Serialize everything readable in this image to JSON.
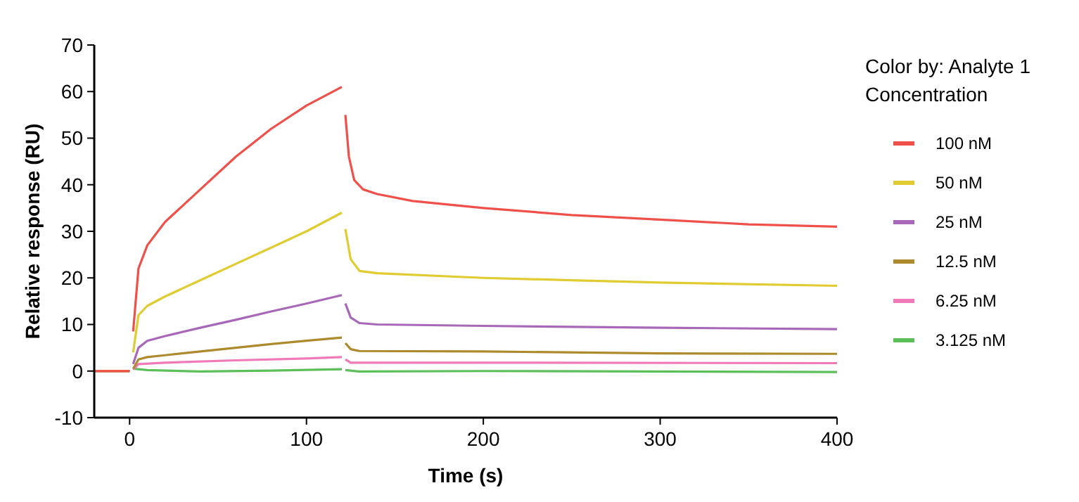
{
  "chart_data": {
    "type": "line",
    "xlabel": "Time (s)",
    "ylabel": "Relative response (RU)",
    "legend_title": "Color by: Analyte 1 Concentration",
    "legend": "right",
    "grid": false,
    "marker": "none",
    "line_style": "solid",
    "xlim": [
      -20,
      400
    ],
    "xticks": [
      0,
      100,
      200,
      300,
      400
    ],
    "ylim": [
      -10,
      70
    ],
    "yticks": [
      -10,
      0,
      10,
      20,
      30,
      40,
      50,
      60,
      70
    ],
    "series": [
      {
        "name": "100 nM",
        "color": "#f0504a",
        "x": [
          -20,
          0,
          null,
          2,
          5,
          10,
          20,
          40,
          60,
          80,
          100,
          120,
          null,
          122,
          124,
          127,
          132,
          140,
          160,
          200,
          250,
          300,
          350,
          400
        ],
        "values": [
          0,
          0,
          null,
          8.5,
          22,
          27,
          32,
          39,
          46,
          52,
          57,
          61,
          null,
          55,
          46,
          41,
          39,
          38,
          36.5,
          35,
          33.5,
          32.5,
          31.5,
          31
        ]
      },
      {
        "name": "50 nM",
        "color": "#e0cc30",
        "x": [
          -20,
          0,
          null,
          2,
          5,
          10,
          20,
          40,
          60,
          80,
          100,
          120,
          null,
          122,
          125,
          130,
          140,
          200,
          250,
          300,
          400
        ],
        "values": [
          0,
          0,
          null,
          4,
          12,
          14,
          16,
          19.5,
          23,
          26.5,
          30,
          34,
          null,
          30.5,
          24,
          21.5,
          21,
          20,
          19.5,
          19,
          18.3
        ]
      },
      {
        "name": "25 nM",
        "color": "#a868b8",
        "x": [
          -20,
          0,
          null,
          2,
          5,
          10,
          20,
          40,
          60,
          80,
          100,
          120,
          null,
          122,
          125,
          130,
          140,
          200,
          300,
          400
        ],
        "values": [
          0,
          0,
          null,
          1.5,
          5,
          6.5,
          7.5,
          9.3,
          11,
          12.8,
          14.5,
          16.3,
          null,
          14.5,
          11.5,
          10.3,
          10,
          9.7,
          9.3,
          9
        ]
      },
      {
        "name": "12.5 nM",
        "color": "#ad8a2e",
        "x": [
          -20,
          0,
          null,
          2,
          5,
          10,
          20,
          40,
          60,
          80,
          100,
          120,
          null,
          122,
          125,
          130,
          200,
          300,
          400
        ],
        "values": [
          0,
          0,
          null,
          0.5,
          2.5,
          3,
          3.4,
          4.2,
          5,
          5.8,
          6.5,
          7.2,
          null,
          6,
          4.7,
          4.3,
          4.2,
          3.8,
          3.7
        ]
      },
      {
        "name": "6.25 nM",
        "color": "#f07ab8",
        "x": [
          -20,
          0,
          null,
          2,
          5,
          20,
          60,
          100,
          120,
          null,
          122,
          125,
          200,
          400
        ],
        "values": [
          0,
          0,
          null,
          0.3,
          1.5,
          1.8,
          2.3,
          2.7,
          3,
          null,
          2.5,
          1.8,
          1.8,
          1.7
        ]
      },
      {
        "name": "3.125 nM",
        "color": "#5cbf5a",
        "x": [
          -20,
          0,
          null,
          2,
          10,
          40,
          80,
          120,
          null,
          122,
          130,
          200,
          400
        ],
        "values": [
          0,
          0,
          null,
          0.5,
          0.2,
          -0.1,
          0.1,
          0.4,
          null,
          0.2,
          -0.1,
          0,
          -0.2
        ]
      }
    ]
  }
}
